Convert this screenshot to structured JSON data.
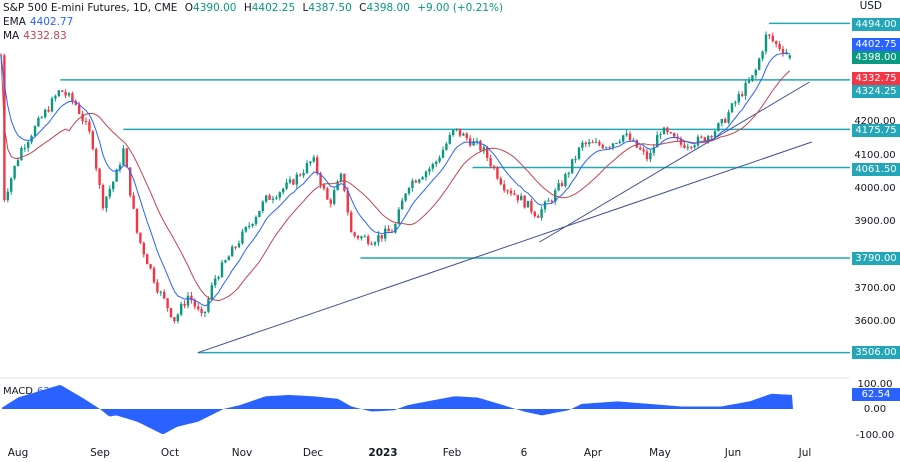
{
  "header": {
    "symbol": "S&P 500 E-mini Futures, 1D, CME",
    "open_label": "O",
    "open": "4390.00",
    "high_label": "H",
    "high": "4402.25",
    "low_label": "L",
    "low": "4387.50",
    "close_label": "C",
    "close": "4398.00",
    "change": "+9.00 (+0.21%)",
    "ema_label": "EMA",
    "ema_value": "4402.77",
    "ma_label": "MA",
    "ma_value": "4332.83",
    "currency": "USD"
  },
  "macd": {
    "label": "MACD",
    "value": "62.54"
  },
  "colors": {
    "up": "#089981",
    "down": "#f23645",
    "ema": "#2962ff",
    "ma": "#c2454f",
    "level": "#22a6b8",
    "trend": "#3d4f8e",
    "macd": "#2962ff",
    "current_price": "#089981"
  },
  "price_axis": {
    "ticks": [
      "4200.00",
      "4100.00",
      "4000.00",
      "3900.00",
      "3700.00",
      "3600.00"
    ],
    "labels": [
      {
        "text": "4494.00",
        "kind": "level"
      },
      {
        "text": "4402.75",
        "kind": "ema"
      },
      {
        "text": "4398.00",
        "kind": "close"
      },
      {
        "text": "4332.75",
        "kind": "ma"
      },
      {
        "text": "4324.25",
        "kind": "level"
      },
      {
        "text": "4175.75",
        "kind": "level"
      },
      {
        "text": "4061.50",
        "kind": "level"
      },
      {
        "text": "3790.00",
        "kind": "level"
      },
      {
        "text": "3506.00",
        "kind": "level"
      }
    ]
  },
  "macd_axis": {
    "ticks": [
      "100.00",
      "0.00",
      "-100.00"
    ]
  },
  "time_axis": [
    "Aug",
    "Sep",
    "Oct",
    "Nov",
    "Dec",
    "2023",
    "Feb",
    "6",
    "Apr",
    "May",
    "Jun",
    "Jul"
  ],
  "chart_data": {
    "type": "candlestick",
    "title": "S&P 500 E-mini Futures, 1D, CME",
    "ylim": [
      3470,
      4560
    ],
    "x_range": [
      "2022-07-25",
      "2023-07-05"
    ],
    "approx_close_path": [
      [
        "2022-07-25",
        3950
      ],
      [
        "2022-08-02",
        4115
      ],
      [
        "2022-08-17",
        4295
      ],
      [
        "2022-08-23",
        4250
      ],
      [
        "2022-08-29",
        4145
      ],
      [
        "2022-09-02",
        3950
      ],
      [
        "2022-09-08",
        4040
      ],
      [
        "2022-09-11",
        4115
      ],
      [
        "2022-09-17",
        3860
      ],
      [
        "2022-09-26",
        3695
      ],
      [
        "2022-10-03",
        3605
      ],
      [
        "2022-10-09",
        3680
      ],
      [
        "2022-10-15",
        3605
      ],
      [
        "2022-10-20",
        3725
      ],
      [
        "2022-10-31",
        3845
      ],
      [
        "2022-11-11",
        3965
      ],
      [
        "2022-11-21",
        4010
      ],
      [
        "2022-12-01",
        4085
      ],
      [
        "2022-12-08",
        3950
      ],
      [
        "2022-12-14",
        4040
      ],
      [
        "2022-12-18",
        3860
      ],
      [
        "2022-12-27",
        3845
      ],
      [
        "2023-01-06",
        3875
      ],
      [
        "2023-01-12",
        4010
      ],
      [
        "2023-01-24",
        4070
      ],
      [
        "2023-02-02",
        4175
      ],
      [
        "2023-02-13",
        4115
      ],
      [
        "2023-02-21",
        4010
      ],
      [
        "2023-02-28",
        3965
      ],
      [
        "2023-03-07",
        3920
      ],
      [
        "2023-03-13",
        3965
      ],
      [
        "2023-03-19",
        4025
      ],
      [
        "2023-03-27",
        4130
      ],
      [
        "2023-04-08",
        4130
      ],
      [
        "2023-04-15",
        4160
      ],
      [
        "2023-04-26",
        4085
      ],
      [
        "2023-05-01",
        4175
      ],
      [
        "2023-05-10",
        4130
      ],
      [
        "2023-05-19",
        4145
      ],
      [
        "2023-05-27",
        4190
      ],
      [
        "2023-06-04",
        4280
      ],
      [
        "2023-06-10",
        4340
      ],
      [
        "2023-06-15",
        4460
      ],
      [
        "2023-06-19",
        4430
      ],
      [
        "2023-06-26",
        4398
      ]
    ],
    "last": {
      "open": 4390.0,
      "high": 4402.25,
      "low": 4387.5,
      "close": 4398.0
    },
    "ema_last": 4402.77,
    "ma_last": 4332.83,
    "horizontal_levels": [
      {
        "price": 4494.0,
        "from": "2023-06-16"
      },
      {
        "price": 4324.25,
        "from": "2022-08-17"
      },
      {
        "price": 4175.75,
        "from": "2022-09-11"
      },
      {
        "price": 4061.5,
        "from": "2023-02-09"
      },
      {
        "price": 3790.0,
        "from": "2022-12-22"
      },
      {
        "price": 3506.0,
        "from": "2022-10-13"
      }
    ],
    "trendlines": [
      {
        "from": [
          "2022-10-13",
          3506
        ],
        "to": [
          "2023-07-04",
          4138
        ]
      },
      {
        "from": [
          "2023-03-08",
          3838
        ],
        "to": [
          "2023-07-03",
          4318
        ]
      }
    ],
    "macd_series": {
      "ylim": [
        -120,
        110
      ],
      "points": [
        [
          "2022-07-25",
          5
        ],
        [
          "2022-08-01",
          45
        ],
        [
          "2022-08-09",
          70
        ],
        [
          "2022-08-17",
          95
        ],
        [
          "2022-08-26",
          40
        ],
        [
          "2022-09-01",
          0
        ],
        [
          "2022-09-05",
          -30
        ],
        [
          "2022-09-08",
          -25
        ],
        [
          "2022-09-17",
          -50
        ],
        [
          "2022-09-28",
          -100
        ],
        [
          "2022-10-04",
          -70
        ],
        [
          "2022-10-13",
          -50
        ],
        [
          "2022-10-24",
          0
        ],
        [
          "2022-10-31",
          15
        ],
        [
          "2022-11-11",
          50
        ],
        [
          "2022-11-21",
          55
        ],
        [
          "2022-12-01",
          50
        ],
        [
          "2022-12-12",
          40
        ],
        [
          "2022-12-18",
          10
        ],
        [
          "2022-12-27",
          -10
        ],
        [
          "2023-01-06",
          -5
        ],
        [
          "2023-01-12",
          15
        ],
        [
          "2023-01-21",
          30
        ],
        [
          "2023-02-02",
          50
        ],
        [
          "2023-02-11",
          45
        ],
        [
          "2023-02-21",
          15
        ],
        [
          "2023-03-01",
          -10
        ],
        [
          "2023-03-09",
          -25
        ],
        [
          "2023-03-21",
          -5
        ],
        [
          "2023-03-27",
          20
        ],
        [
          "2023-04-12",
          30
        ],
        [
          "2023-04-26",
          20
        ],
        [
          "2023-05-10",
          10
        ],
        [
          "2023-05-27",
          10
        ],
        [
          "2023-06-08",
          30
        ],
        [
          "2023-06-17",
          60
        ],
        [
          "2023-06-26",
          55
        ]
      ]
    }
  }
}
